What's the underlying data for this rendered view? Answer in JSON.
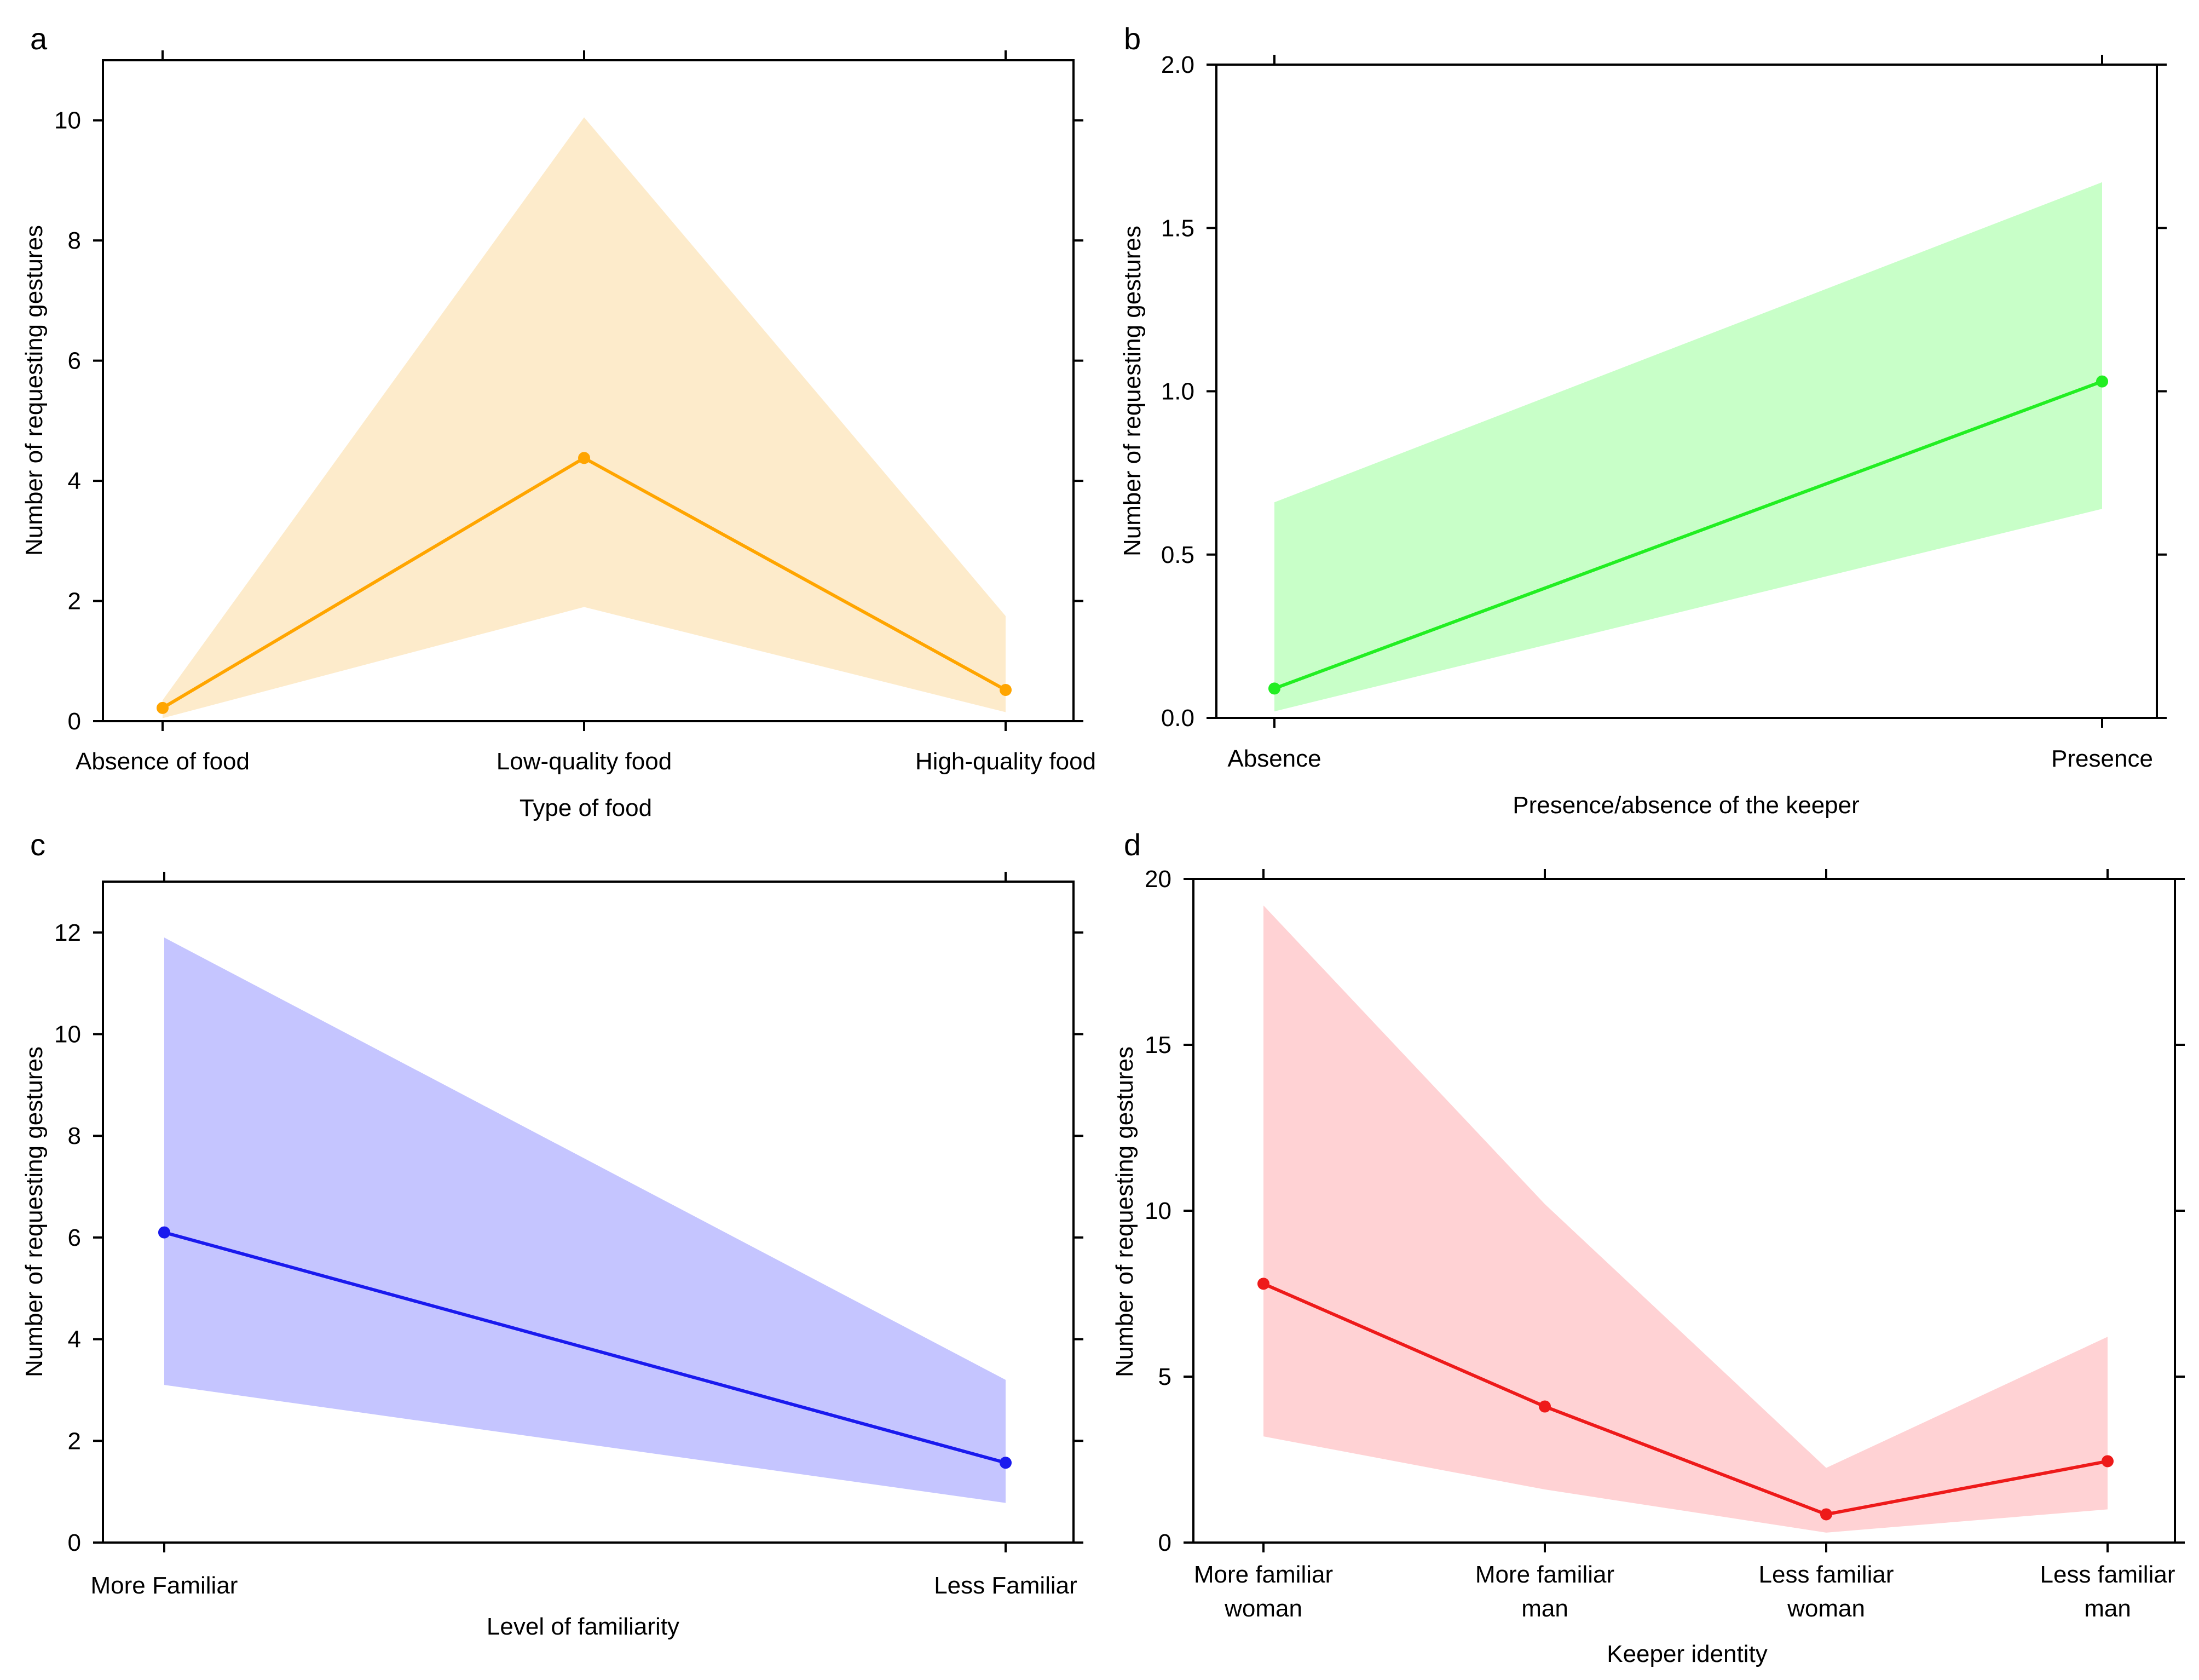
{
  "figure": {
    "panels": [
      "a",
      "b",
      "c",
      "d"
    ]
  },
  "chart_data": [
    {
      "panel": "a",
      "type": "line",
      "xlabel": "Type of food",
      "ylabel": "Number of requesting gestures",
      "categories": [
        "Absence of food",
        "Low-quality food",
        "High-quality food"
      ],
      "values": [
        0.22,
        4.38,
        0.52
      ],
      "ci_lower": [
        0.05,
        1.9,
        0.15
      ],
      "ci_upper": [
        0.35,
        10.05,
        1.75
      ],
      "ylim": [
        0,
        11.0
      ],
      "yticks": [
        0,
        2,
        4,
        6,
        8,
        10
      ],
      "ytick_labels": [
        "0",
        "2",
        "4",
        "6",
        "8",
        "10"
      ],
      "line_color": "#FFA500",
      "fill_color": "#FDEBCB"
    },
    {
      "panel": "b",
      "type": "line",
      "xlabel": "Presence/absence of the keeper",
      "ylabel": "Number of requesting gestures",
      "categories": [
        "Absence",
        "Presence"
      ],
      "values": [
        0.09,
        1.03
      ],
      "ci_lower": [
        0.02,
        0.64
      ],
      "ci_upper": [
        0.66,
        1.64
      ],
      "ylim": [
        0,
        2.0
      ],
      "yticks": [
        0.0,
        0.5,
        1.0,
        1.5,
        2.0
      ],
      "ytick_labels": [
        "0.0",
        "0.5",
        "1.0",
        "1.5",
        "2.0"
      ],
      "line_color": "#22EE22",
      "fill_color": "#C8FFC8"
    },
    {
      "panel": "c",
      "type": "line",
      "xlabel": "Level of familiarity",
      "ylabel": "Number of requesting gestures",
      "categories": [
        "More Familiar",
        "Less Familiar"
      ],
      "values": [
        6.1,
        1.57
      ],
      "ci_lower": [
        3.1,
        0.78
      ],
      "ci_upper": [
        11.9,
        3.2
      ],
      "ylim": [
        0,
        13.0
      ],
      "yticks": [
        0,
        2,
        4,
        6,
        8,
        10,
        12
      ],
      "ytick_labels": [
        "0",
        "2",
        "4",
        "6",
        "8",
        "10",
        "12"
      ],
      "line_color": "#1A1AEE",
      "fill_color": "#C5C5FF"
    },
    {
      "panel": "d",
      "type": "line",
      "xlabel": "Keeper identity",
      "ylabel": "Number of requesting gestures",
      "categories": [
        "More familiar woman",
        "More familiar man",
        "Less familiar woman",
        "Less familiar man"
      ],
      "category_lines": [
        [
          "More familiar",
          "woman"
        ],
        [
          "More familiar",
          "man"
        ],
        [
          "Less familiar",
          "woman"
        ],
        [
          "Less familiar",
          "man"
        ]
      ],
      "values": [
        7.8,
        4.1,
        0.85,
        2.45
      ],
      "ci_lower": [
        3.2,
        1.6,
        0.3,
        1.0
      ],
      "ci_upper": [
        19.2,
        10.2,
        2.25,
        6.2
      ],
      "ylim": [
        0,
        20
      ],
      "yticks": [
        0,
        5,
        10,
        15,
        20
      ],
      "ytick_labels": [
        "0",
        "5",
        "10",
        "15",
        "20"
      ],
      "line_color": "#EE1A1A",
      "fill_color": "#FFD2D4"
    }
  ]
}
